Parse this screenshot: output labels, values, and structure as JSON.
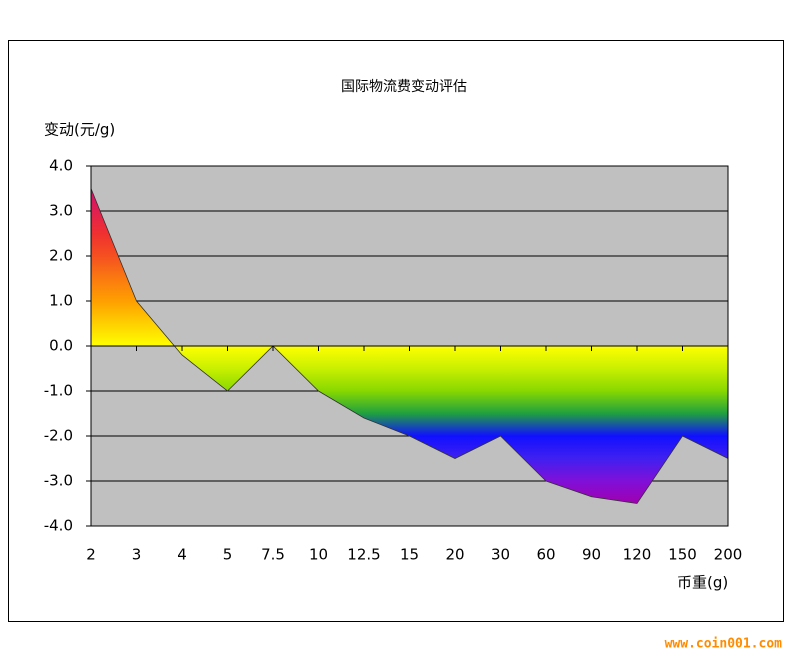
{
  "chart_data": {
    "type": "area",
    "title": "国际物流费变动评估",
    "y_label": "变动(元/g)",
    "x_label": "币重(g)",
    "watermark": "www.coin001.com",
    "categories": [
      "2",
      "3",
      "4",
      "5",
      "7.5",
      "10",
      "12.5",
      "15",
      "20",
      "30",
      "60",
      "90",
      "120",
      "150",
      "200"
    ],
    "values": [
      3.5,
      1.0,
      -0.2,
      -1.0,
      0.0,
      -1.0,
      -1.6,
      -2.0,
      -2.5,
      -2.0,
      -3.0,
      -3.35,
      -3.5,
      -2.0,
      -2.5
    ],
    "ylim": [
      -4,
      4
    ],
    "yticks": [
      {
        "value": -4,
        "label": "-4.0"
      },
      {
        "value": -3,
        "label": "-3.0"
      },
      {
        "value": -2,
        "label": "-2.0"
      },
      {
        "value": -1,
        "label": "-1.0"
      },
      {
        "value": 0,
        "label": "0.0"
      },
      {
        "value": 1,
        "label": "1.0"
      },
      {
        "value": 2,
        "label": "2.0"
      },
      {
        "value": 3,
        "label": "3.0"
      },
      {
        "value": 4,
        "label": "4.0"
      }
    ],
    "grid": true,
    "plot_background": "#c0c0c0",
    "gradient_colors": [
      "#b0007f",
      "#d0106a",
      "#e02050",
      "#f03030",
      "#f55020",
      "#fa7a10",
      "#ff9f00",
      "#ffd000",
      "#ffff00",
      "#c8f000",
      "#88d800",
      "#20a040",
      "#1010ff",
      "#4020f0",
      "#8010d8",
      "#a000b0",
      "#c000a0"
    ]
  }
}
